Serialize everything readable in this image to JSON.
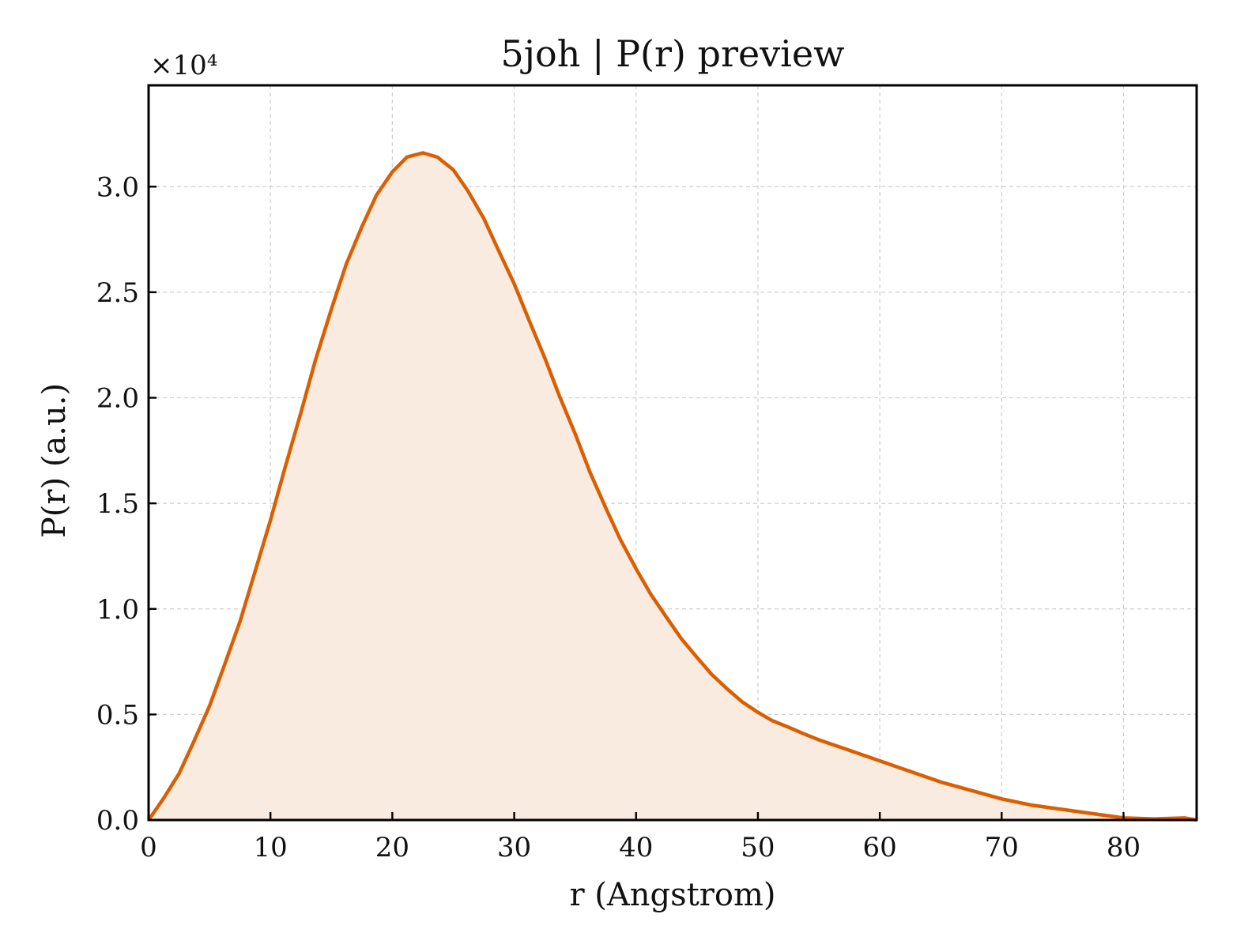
{
  "chart_data": {
    "type": "area",
    "title": "5joh | P(r) preview",
    "xlabel": "r (Angstrom)",
    "ylabel": "P(r) (a.u.)",
    "y_multiplier_label": "×10⁴",
    "xlim": [
      0,
      86
    ],
    "ylim": [
      0,
      3.48
    ],
    "x_ticks": [
      0,
      10,
      20,
      30,
      40,
      50,
      60,
      70,
      80
    ],
    "y_ticks": [
      0.0,
      0.5,
      1.0,
      1.5,
      2.0,
      2.5,
      3.0
    ],
    "x_tick_labels": [
      "0",
      "10",
      "20",
      "30",
      "40",
      "50",
      "60",
      "70",
      "80"
    ],
    "y_tick_labels": [
      "0.0",
      "0.5",
      "1.0",
      "1.5",
      "2.0",
      "2.5",
      "3.0"
    ],
    "grid": true,
    "line_color": "#d95f02",
    "fill_color": "#f9ebe0",
    "series": [
      {
        "x": [
          0,
          1.2,
          2.5,
          3.7,
          5,
          6.2,
          7.5,
          8.7,
          10,
          11.2,
          12.5,
          13.7,
          15,
          16.2,
          17.5,
          18.7,
          20,
          21.2,
          22.5,
          23.7,
          25,
          26.2,
          27.5,
          28.7,
          30,
          31.2,
          32.5,
          33.7,
          35,
          36.2,
          37.5,
          38.7,
          40,
          41.2,
          42.5,
          43.7,
          45,
          46.2,
          47.5,
          48.7,
          50,
          51.2,
          52.5,
          53.7,
          55,
          57.5,
          60,
          62.5,
          65,
          67.5,
          70,
          72.5,
          75,
          77.5,
          80,
          82.5,
          85,
          86
        ],
        "y": [
          0.0,
          0.1,
          0.22,
          0.37,
          0.54,
          0.73,
          0.94,
          1.17,
          1.42,
          1.67,
          1.93,
          2.18,
          2.42,
          2.63,
          2.81,
          2.96,
          3.07,
          3.14,
          3.16,
          3.14,
          3.08,
          2.98,
          2.85,
          2.7,
          2.54,
          2.37,
          2.19,
          2.01,
          1.83,
          1.65,
          1.48,
          1.33,
          1.19,
          1.07,
          0.96,
          0.86,
          0.77,
          0.69,
          0.62,
          0.56,
          0.51,
          0.47,
          0.44,
          0.41,
          0.38,
          0.33,
          0.28,
          0.23,
          0.18,
          0.14,
          0.1,
          0.07,
          0.05,
          0.03,
          0.01,
          0.005,
          0.01,
          0.0
        ]
      }
    ]
  }
}
